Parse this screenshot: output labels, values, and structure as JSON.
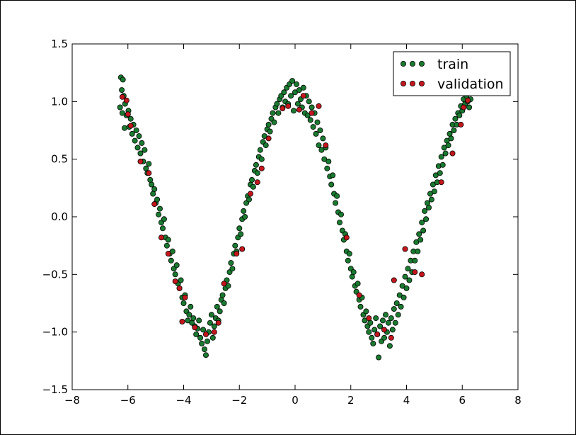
{
  "chart_data": {
    "type": "scatter",
    "title": "",
    "xlabel": "",
    "ylabel": "",
    "xlim": [
      -8,
      8
    ],
    "ylim": [
      -1.5,
      1.5
    ],
    "grid": false,
    "legend_position": "top-right",
    "x_ticks": [
      -8,
      -6,
      -4,
      -2,
      0,
      2,
      4,
      6,
      8
    ],
    "x_tick_labels": [
      "−8",
      "−6",
      "−4",
      "−2",
      "0",
      "2",
      "4",
      "6",
      "8"
    ],
    "y_ticks": [
      -1.5,
      -1.0,
      -0.5,
      0.0,
      0.5,
      1.0,
      1.5
    ],
    "y_tick_labels": [
      "−1.5",
      "−1.0",
      "−0.5",
      "0.0",
      "0.5",
      "1.0",
      "1.5"
    ],
    "series": [
      {
        "name": "train",
        "color": "#1a7a30",
        "points": [
          [
            -6.25,
            1.21
          ],
          [
            -6.18,
            1.19
          ],
          [
            -6.22,
            1.1
          ],
          [
            -6.15,
            1.05
          ],
          [
            -6.28,
            0.95
          ],
          [
            -6.2,
            0.9
          ],
          [
            -6.1,
            0.98
          ],
          [
            -6.05,
            0.88
          ],
          [
            -6.12,
            0.77
          ],
          [
            -5.98,
            0.92
          ],
          [
            -5.95,
            0.78
          ],
          [
            -5.9,
            0.85
          ],
          [
            -5.85,
            0.72
          ],
          [
            -5.8,
            0.8
          ],
          [
            -5.75,
            0.66
          ],
          [
            -5.7,
            0.75
          ],
          [
            -5.65,
            0.6
          ],
          [
            -5.6,
            0.7
          ],
          [
            -5.55,
            0.55
          ],
          [
            -5.5,
            0.64
          ],
          [
            -5.45,
            0.48
          ],
          [
            -5.4,
            0.58
          ],
          [
            -5.35,
            0.42
          ],
          [
            -5.3,
            0.38
          ],
          [
            -5.25,
            0.46
          ],
          [
            -5.2,
            0.32
          ],
          [
            -5.15,
            0.28
          ],
          [
            -5.1,
            0.2
          ],
          [
            -5.05,
            0.24
          ],
          [
            -5.0,
            0.12
          ],
          [
            -4.95,
            0.15
          ],
          [
            -4.9,
            0.02
          ],
          [
            -4.85,
            0.07
          ],
          [
            -4.8,
            -0.05
          ],
          [
            -4.75,
            -0.1
          ],
          [
            -4.7,
            -0.02
          ],
          [
            -4.65,
            -0.18
          ],
          [
            -4.6,
            -0.25
          ],
          [
            -4.55,
            -0.2
          ],
          [
            -4.5,
            -0.32
          ],
          [
            -4.45,
            -0.38
          ],
          [
            -4.4,
            -0.3
          ],
          [
            -4.35,
            -0.45
          ],
          [
            -4.3,
            -0.5
          ],
          [
            -4.25,
            -0.42
          ],
          [
            -4.2,
            -0.58
          ],
          [
            -4.15,
            -0.62
          ],
          [
            -4.1,
            -0.55
          ],
          [
            -4.05,
            -0.7
          ],
          [
            -4.0,
            -0.75
          ],
          [
            -3.95,
            -0.68
          ],
          [
            -3.9,
            -0.82
          ],
          [
            -3.85,
            -0.9
          ],
          [
            -3.8,
            -0.85
          ],
          [
            -3.75,
            -0.78
          ],
          [
            -3.7,
            -0.92
          ],
          [
            -3.65,
            -0.88
          ],
          [
            -3.6,
            -0.95
          ],
          [
            -3.55,
            -1.02
          ],
          [
            -3.5,
            -0.97
          ],
          [
            -3.45,
            -0.9
          ],
          [
            -3.4,
            -1.05
          ],
          [
            -3.35,
            -1.1
          ],
          [
            -3.3,
            -0.98
          ],
          [
            -3.25,
            -1.15
          ],
          [
            -3.2,
            -1.2
          ],
          [
            -3.15,
            -1.08
          ],
          [
            -3.1,
            -1.0
          ],
          [
            -3.05,
            -0.92
          ],
          [
            -3.0,
            -0.85
          ],
          [
            -2.95,
            -1.05
          ],
          [
            -2.9,
            -0.95
          ],
          [
            -2.85,
            -0.88
          ],
          [
            -2.8,
            -0.78
          ],
          [
            -2.75,
            -0.9
          ],
          [
            -2.7,
            -0.82
          ],
          [
            -2.65,
            -0.72
          ],
          [
            -2.6,
            -0.68
          ],
          [
            -2.55,
            -0.75
          ],
          [
            -2.5,
            -0.62
          ],
          [
            -2.45,
            -0.55
          ],
          [
            -2.4,
            -0.6
          ],
          [
            -2.35,
            -0.48
          ],
          [
            -2.3,
            -0.4
          ],
          [
            -2.25,
            -0.45
          ],
          [
            -2.2,
            -0.32
          ],
          [
            -2.15,
            -0.25
          ],
          [
            -2.1,
            -0.3
          ],
          [
            -2.05,
            -0.18
          ],
          [
            -2.0,
            -0.1
          ],
          [
            -1.95,
            -0.15
          ],
          [
            -1.9,
            -0.02
          ],
          [
            -1.85,
            0.05
          ],
          [
            -1.8,
            0.0
          ],
          [
            -1.75,
            0.12
          ],
          [
            -1.7,
            0.18
          ],
          [
            -1.65,
            0.15
          ],
          [
            -1.6,
            0.28
          ],
          [
            -1.55,
            0.32
          ],
          [
            -1.5,
            0.26
          ],
          [
            -1.45,
            0.4
          ],
          [
            -1.4,
            0.45
          ],
          [
            -1.35,
            0.38
          ],
          [
            -1.3,
            0.52
          ],
          [
            -1.25,
            0.58
          ],
          [
            -1.2,
            0.5
          ],
          [
            -1.15,
            0.65
          ],
          [
            -1.1,
            0.7
          ],
          [
            -1.05,
            0.62
          ],
          [
            -1.0,
            0.76
          ],
          [
            -0.95,
            0.8
          ],
          [
            -0.9,
            0.74
          ],
          [
            -0.85,
            0.85
          ],
          [
            -0.8,
            0.9
          ],
          [
            -0.75,
            0.82
          ],
          [
            -0.7,
            0.95
          ],
          [
            -0.65,
            0.98
          ],
          [
            -0.6,
            0.9
          ],
          [
            -0.55,
            1.02
          ],
          [
            -0.5,
            1.05
          ],
          [
            -0.45,
            0.95
          ],
          [
            -0.4,
            1.08
          ],
          [
            -0.35,
            1.0
          ],
          [
            -0.3,
            1.12
          ],
          [
            -0.25,
            0.98
          ],
          [
            -0.2,
            1.15
          ],
          [
            -0.15,
            1.05
          ],
          [
            -0.1,
            1.18
          ],
          [
            -0.05,
            0.92
          ],
          [
            0.0,
            1.08
          ],
          [
            0.05,
            1.15
          ],
          [
            0.1,
            0.98
          ],
          [
            0.15,
            1.1
          ],
          [
            0.2,
            1.02
          ],
          [
            0.25,
            0.95
          ],
          [
            0.3,
            1.12
          ],
          [
            0.35,
            0.9
          ],
          [
            0.4,
            1.05
          ],
          [
            0.45,
            0.88
          ],
          [
            0.5,
            1.0
          ],
          [
            0.55,
            0.84
          ],
          [
            0.6,
            0.95
          ],
          [
            0.65,
            0.78
          ],
          [
            0.7,
            0.9
          ],
          [
            0.75,
            0.72
          ],
          [
            0.8,
            0.82
          ],
          [
            0.85,
            0.62
          ],
          [
            0.9,
            0.75
          ],
          [
            0.95,
            0.58
          ],
          [
            1.0,
            0.68
          ],
          [
            1.05,
            0.5
          ],
          [
            1.1,
            0.6
          ],
          [
            1.15,
            0.42
          ],
          [
            1.2,
            0.48
          ],
          [
            1.25,
            0.35
          ],
          [
            1.3,
            0.28
          ],
          [
            1.35,
            0.36
          ],
          [
            1.4,
            0.2
          ],
          [
            1.45,
            0.12
          ],
          [
            1.5,
            0.18
          ],
          [
            1.55,
            0.04
          ],
          [
            1.6,
            -0.05
          ],
          [
            1.65,
            0.02
          ],
          [
            1.7,
            -0.12
          ],
          [
            1.75,
            -0.2
          ],
          [
            1.8,
            -0.15
          ],
          [
            1.85,
            -0.3
          ],
          [
            1.9,
            -0.38
          ],
          [
            1.95,
            -0.32
          ],
          [
            2.0,
            -0.45
          ],
          [
            2.05,
            -0.52
          ],
          [
            2.1,
            -0.48
          ],
          [
            2.15,
            -0.6
          ],
          [
            2.2,
            -0.65
          ],
          [
            2.25,
            -0.58
          ],
          [
            2.3,
            -0.72
          ],
          [
            2.35,
            -0.78
          ],
          [
            2.4,
            -0.7
          ],
          [
            2.45,
            -0.85
          ],
          [
            2.5,
            -0.9
          ],
          [
            2.55,
            -0.82
          ],
          [
            2.6,
            -0.95
          ],
          [
            2.65,
            -1.0
          ],
          [
            2.7,
            -0.92
          ],
          [
            2.75,
            -1.05
          ],
          [
            2.8,
            -1.1
          ],
          [
            2.85,
            -0.98
          ],
          [
            2.9,
            -0.88
          ],
          [
            2.95,
            -1.02
          ],
          [
            3.0,
            -1.22
          ],
          [
            3.05,
            -0.95
          ],
          [
            3.1,
            -1.08
          ],
          [
            3.15,
            -0.9
          ],
          [
            3.2,
            -1.05
          ],
          [
            3.25,
            -0.85
          ],
          [
            3.3,
            -1.0
          ],
          [
            3.35,
            -0.92
          ],
          [
            3.4,
            -1.12
          ],
          [
            3.45,
            -0.88
          ],
          [
            3.5,
            -0.98
          ],
          [
            3.55,
            -0.8
          ],
          [
            3.6,
            -0.92
          ],
          [
            3.65,
            -0.75
          ],
          [
            3.7,
            -0.85
          ],
          [
            3.75,
            -0.68
          ],
          [
            3.8,
            -0.78
          ],
          [
            3.85,
            -0.6
          ],
          [
            3.9,
            -0.7
          ],
          [
            3.95,
            -0.52
          ],
          [
            4.0,
            -0.62
          ],
          [
            4.05,
            -0.45
          ],
          [
            4.1,
            -0.55
          ],
          [
            4.15,
            -0.38
          ],
          [
            4.2,
            -0.48
          ],
          [
            4.25,
            -0.3
          ],
          [
            4.3,
            -0.38
          ],
          [
            4.35,
            -0.22
          ],
          [
            4.4,
            -0.3
          ],
          [
            4.45,
            -0.15
          ],
          [
            4.5,
            -0.2
          ],
          [
            4.55,
            -0.05
          ],
          [
            4.6,
            -0.12
          ],
          [
            4.65,
            0.05
          ],
          [
            4.7,
            -0.02
          ],
          [
            4.75,
            0.12
          ],
          [
            4.8,
            0.08
          ],
          [
            4.85,
            0.2
          ],
          [
            4.9,
            0.15
          ],
          [
            4.95,
            0.28
          ],
          [
            5.0,
            0.22
          ],
          [
            5.05,
            0.36
          ],
          [
            5.1,
            0.3
          ],
          [
            5.15,
            0.44
          ],
          [
            5.2,
            0.38
          ],
          [
            5.25,
            0.52
          ],
          [
            5.3,
            0.45
          ],
          [
            5.35,
            0.6
          ],
          [
            5.4,
            0.55
          ],
          [
            5.45,
            0.66
          ],
          [
            5.5,
            0.62
          ],
          [
            5.55,
            0.72
          ],
          [
            5.6,
            0.68
          ],
          [
            5.65,
            0.8
          ],
          [
            5.7,
            0.75
          ],
          [
            5.75,
            0.85
          ],
          [
            5.8,
            0.8
          ],
          [
            5.85,
            0.9
          ],
          [
            5.9,
            0.88
          ],
          [
            5.95,
            0.96
          ],
          [
            6.0,
            0.92
          ],
          [
            6.05,
            1.02
          ],
          [
            6.1,
            0.98
          ],
          [
            6.15,
            1.05
          ],
          [
            6.2,
            1.0
          ],
          [
            6.25,
            0.95
          ],
          [
            6.3,
            1.02
          ]
        ]
      },
      {
        "name": "validation",
        "color": "#c4161c",
        "points": [
          [
            -6.2,
            1.04
          ],
          [
            -6.05,
            1.01
          ],
          [
            -6.0,
            0.89
          ],
          [
            -5.9,
            0.79
          ],
          [
            -5.55,
            0.48
          ],
          [
            -5.25,
            0.38
          ],
          [
            -5.05,
            0.11
          ],
          [
            -4.8,
            -0.18
          ],
          [
            -4.55,
            -0.32
          ],
          [
            -4.3,
            -0.56
          ],
          [
            -4.15,
            -0.62
          ],
          [
            -4.05,
            -0.91
          ],
          [
            -3.95,
            -0.7
          ],
          [
            -3.6,
            -0.96
          ],
          [
            -3.2,
            -1.02
          ],
          [
            -2.9,
            -1.0
          ],
          [
            -2.75,
            -0.92
          ],
          [
            -2.55,
            -0.58
          ],
          [
            -2.1,
            -0.32
          ],
          [
            -1.9,
            -0.28
          ],
          [
            -1.6,
            0.2
          ],
          [
            -1.35,
            0.3
          ],
          [
            -1.2,
            0.42
          ],
          [
            -0.95,
            0.68
          ],
          [
            -0.45,
            0.94
          ],
          [
            -0.25,
            0.96
          ],
          [
            0.15,
            0.93
          ],
          [
            0.3,
            1.05
          ],
          [
            0.6,
            0.9
          ],
          [
            0.85,
            0.96
          ],
          [
            1.1,
            0.62
          ],
          [
            1.85,
            -0.18
          ],
          [
            2.3,
            -0.68
          ],
          [
            2.65,
            -0.88
          ],
          [
            2.95,
            -1.02
          ],
          [
            3.2,
            -0.98
          ],
          [
            3.45,
            -1.05
          ],
          [
            3.55,
            -0.55
          ],
          [
            3.95,
            -0.28
          ],
          [
            4.3,
            -0.48
          ],
          [
            4.55,
            -0.5
          ],
          [
            5.25,
            0.3
          ],
          [
            5.65,
            0.55
          ],
          [
            5.95,
            0.8
          ],
          [
            6.05,
            0.95
          ],
          [
            6.2,
            1.01
          ]
        ]
      }
    ]
  }
}
